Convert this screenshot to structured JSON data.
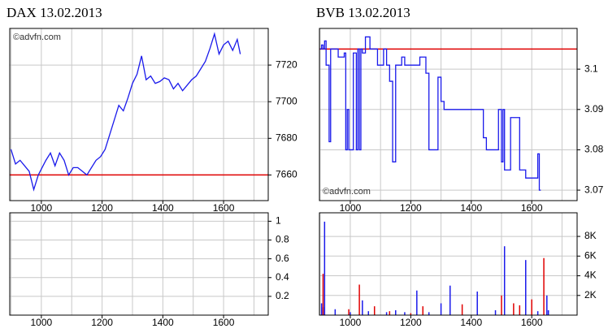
{
  "chart_data": [
    {
      "type": "line",
      "title": "DAX 13.02.2013",
      "watermark": "©advfn.com",
      "watermark_corner": "top-left",
      "x": [
        900,
        915,
        930,
        945,
        960,
        975,
        990,
        1015,
        1030,
        1045,
        1060,
        1075,
        1090,
        1105,
        1120,
        1135,
        1150,
        1165,
        1180,
        1195,
        1210,
        1225,
        1240,
        1255,
        1270,
        1285,
        1300,
        1315,
        1330,
        1345,
        1360,
        1375,
        1390,
        1405,
        1420,
        1435,
        1450,
        1465,
        1480,
        1495,
        1510,
        1525,
        1540,
        1555,
        1570,
        1585,
        1600,
        1615,
        1630,
        1645,
        1655
      ],
      "series": [
        {
          "color": "#1a1aeb",
          "values": [
            7674,
            7666,
            7668,
            7665,
            7662,
            7652,
            7660,
            7668,
            7672,
            7665,
            7672,
            7668,
            7660,
            7664,
            7664,
            7662,
            7660,
            7664,
            7668,
            7670,
            7674,
            7682,
            7690,
            7698,
            7695,
            7702,
            7710,
            7715,
            7725,
            7712,
            7714,
            7710,
            7711,
            7713,
            7712,
            7707,
            7710,
            7706,
            7709,
            7712,
            7714,
            7718,
            7722,
            7729,
            7737,
            7726,
            7731,
            7733,
            7728,
            7734,
            7726
          ]
        }
      ],
      "ref_line": {
        "value": 7660,
        "color": "#e00000"
      },
      "xlim": [
        896,
        1747
      ],
      "xticks": [
        1000,
        1200,
        1400,
        1600
      ],
      "xgrid": [
        900,
        1000,
        1100,
        1200,
        1300,
        1400,
        1500,
        1600,
        1700
      ],
      "ylim": [
        7646,
        7740
      ],
      "yticks": [
        7660,
        7680,
        7700,
        7720
      ],
      "grid": true
    },
    {
      "type": "bar",
      "series": [],
      "xlim": [
        896,
        1747
      ],
      "xticks": [
        1000,
        1200,
        1400,
        1600
      ],
      "xgrid": [
        900,
        1000,
        1100,
        1200,
        1300,
        1400,
        1500,
        1600,
        1700
      ],
      "ylim": [
        0,
        1.09
      ],
      "yticks": [
        0.2,
        0.4,
        0.6,
        0.8,
        1
      ],
      "grid": true
    },
    {
      "type": "step",
      "title": "BVB 13.02.2013",
      "watermark": "©advfn.com",
      "watermark_corner": "bottom-left",
      "x": [
        900,
        905,
        910,
        915,
        920,
        930,
        935,
        960,
        980,
        985,
        990,
        995,
        1010,
        1020,
        1025,
        1030,
        1035,
        1040,
        1050,
        1060,
        1065,
        1090,
        1110,
        1120,
        1130,
        1140,
        1150,
        1170,
        1180,
        1200,
        1230,
        1250,
        1260,
        1290,
        1300,
        1310,
        1440,
        1450,
        1490,
        1500,
        1505,
        1510,
        1530,
        1560,
        1580,
        1620,
        1625,
        1630
      ],
      "series": [
        {
          "color": "#1a1aeb",
          "values": [
            3.105,
            3.106,
            3.105,
            3.107,
            3.101,
            3.082,
            3.105,
            3.103,
            3.104,
            3.08,
            3.09,
            3.08,
            3.104,
            3.08,
            3.105,
            3.08,
            3.105,
            3.104,
            3.108,
            3.108,
            3.105,
            3.101,
            3.105,
            3.101,
            3.097,
            3.077,
            3.101,
            3.103,
            3.101,
            3.101,
            3.103,
            3.099,
            3.08,
            3.098,
            3.092,
            3.09,
            3.083,
            3.08,
            3.09,
            3.077,
            3.09,
            3.075,
            3.088,
            3.075,
            3.073,
            3.079,
            3.07,
            3.07
          ]
        }
      ],
      "ref_line": {
        "value": 3.105,
        "color": "#e00000"
      },
      "xlim": [
        898,
        1750
      ],
      "xticks": [
        1000,
        1200,
        1400,
        1600
      ],
      "xgrid": [
        900,
        1000,
        1100,
        1200,
        1300,
        1400,
        1500,
        1600,
        1700
      ],
      "ylim": [
        3.0674,
        3.1101
      ],
      "yticks": [
        3.07,
        3.08,
        3.09,
        3.1
      ],
      "grid": true
    },
    {
      "type": "bar",
      "series": [
        {
          "color": "#1a1aeb",
          "x": [
            905,
            910,
            915,
            950,
            1000,
            1040,
            1060,
            1120,
            1150,
            1180,
            1220,
            1260,
            1300,
            1330,
            1420,
            1480,
            1510,
            1580,
            1620,
            1650,
            1655
          ],
          "values": [
            1200,
            800,
            9500,
            600,
            300,
            1500,
            400,
            300,
            500,
            300,
            2500,
            300,
            1200,
            3000,
            2400,
            500,
            7000,
            5600,
            400,
            2000,
            500
          ]
        },
        {
          "color": "#e00000",
          "x": [
            910,
            995,
            1030,
            1080,
            1130,
            1200,
            1240,
            1370,
            1500,
            1540,
            1560,
            1600,
            1640
          ],
          "values": [
            4200,
            600,
            3100,
            900,
            400,
            200,
            900,
            1100,
            2000,
            1200,
            1000,
            1600,
            5800
          ]
        }
      ],
      "xlim": [
        898,
        1750
      ],
      "xticks": [
        1000,
        1200,
        1400,
        1600
      ],
      "xgrid": [
        900,
        1000,
        1100,
        1200,
        1300,
        1400,
        1500,
        1600,
        1700
      ],
      "ylim": [
        0,
        10400
      ],
      "yticks": [
        {
          "value": 2000,
          "label": "2K"
        },
        {
          "value": 4000,
          "label": "4K"
        },
        {
          "value": 6000,
          "label": "6K"
        },
        {
          "value": 8000,
          "label": "8K"
        }
      ],
      "grid": true
    }
  ]
}
